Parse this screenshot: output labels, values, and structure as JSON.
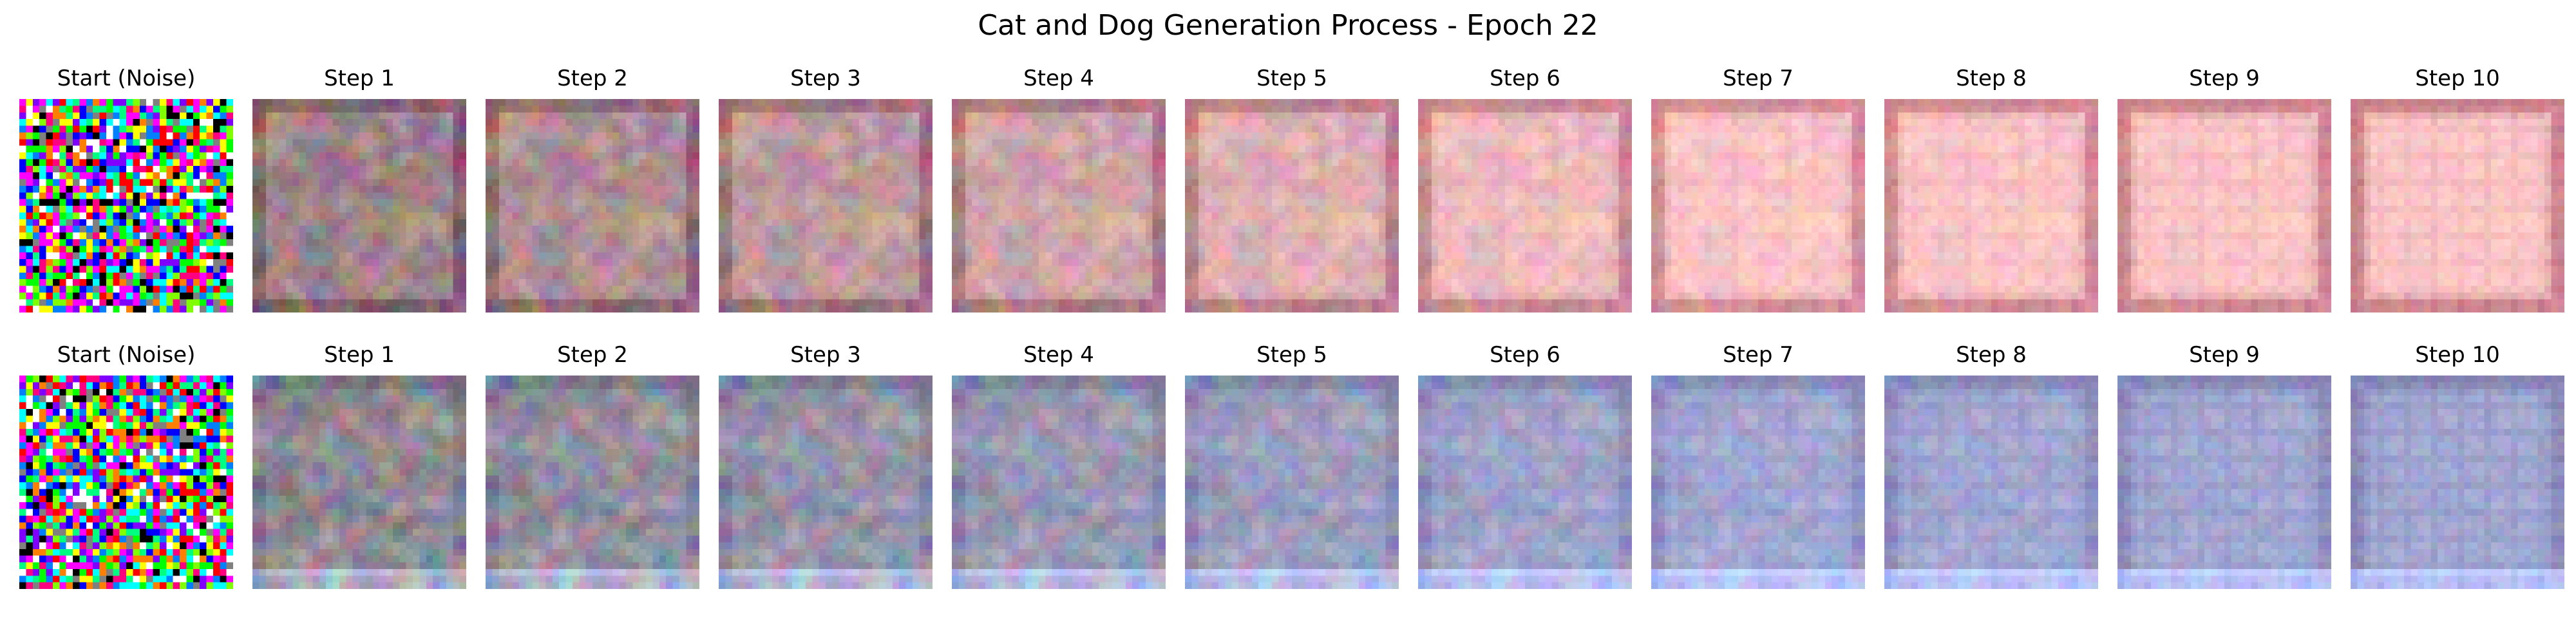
{
  "figure": {
    "title": "Cat and Dog Generation Process - Epoch 22"
  },
  "rows": [
    {
      "panels": [
        {
          "title": "Start (Noise)",
          "kind": "noise"
        },
        {
          "title": "Step 1",
          "kind": "generated",
          "stage": 1,
          "tint": "#FFC8C8"
        },
        {
          "title": "Step 2",
          "kind": "generated",
          "stage": 2,
          "tint": "#FFC8C8"
        },
        {
          "title": "Step 3",
          "kind": "generated",
          "stage": 3,
          "tint": "#FFC8C8"
        },
        {
          "title": "Step 4",
          "kind": "generated",
          "stage": 4,
          "tint": "#FFC8C8"
        },
        {
          "title": "Step 5",
          "kind": "generated",
          "stage": 5,
          "tint": "#FFC8C8"
        },
        {
          "title": "Step 6",
          "kind": "generated",
          "stage": 6,
          "tint": "#FFC8C8"
        },
        {
          "title": "Step 7",
          "kind": "generated",
          "stage": 7,
          "tint": "#FFC8C8"
        },
        {
          "title": "Step 8",
          "kind": "generated",
          "stage": 8,
          "tint": "#FFC8C8"
        },
        {
          "title": "Step 9",
          "kind": "generated",
          "stage": 9,
          "tint": "#FFC8C8"
        },
        {
          "title": "Step 10",
          "kind": "generated",
          "stage": 10,
          "tint": "#FFC8C8"
        }
      ]
    },
    {
      "panels": [
        {
          "title": "Start (Noise)",
          "kind": "noise"
        },
        {
          "title": "Step 1",
          "kind": "generated",
          "stage": 1,
          "tint": "#A4AAD4"
        },
        {
          "title": "Step 2",
          "kind": "generated",
          "stage": 2,
          "tint": "#A4AAD4"
        },
        {
          "title": "Step 3",
          "kind": "generated",
          "stage": 3,
          "tint": "#A4AAD4"
        },
        {
          "title": "Step 4",
          "kind": "generated",
          "stage": 4,
          "tint": "#A4AAD4"
        },
        {
          "title": "Step 5",
          "kind": "generated",
          "stage": 5,
          "tint": "#A4AAD4"
        },
        {
          "title": "Step 6",
          "kind": "generated",
          "stage": 6,
          "tint": "#A4AAD4"
        },
        {
          "title": "Step 7",
          "kind": "generated",
          "stage": 7,
          "tint": "#A4AAD4"
        },
        {
          "title": "Step 8",
          "kind": "generated",
          "stage": 8,
          "tint": "#A4AAD4"
        },
        {
          "title": "Step 9",
          "kind": "generated",
          "stage": 9,
          "tint": "#A4AAD4"
        },
        {
          "title": "Step 10",
          "kind": "generated",
          "stage": 10,
          "tint": "#A4AAD4"
        }
      ]
    }
  ]
}
